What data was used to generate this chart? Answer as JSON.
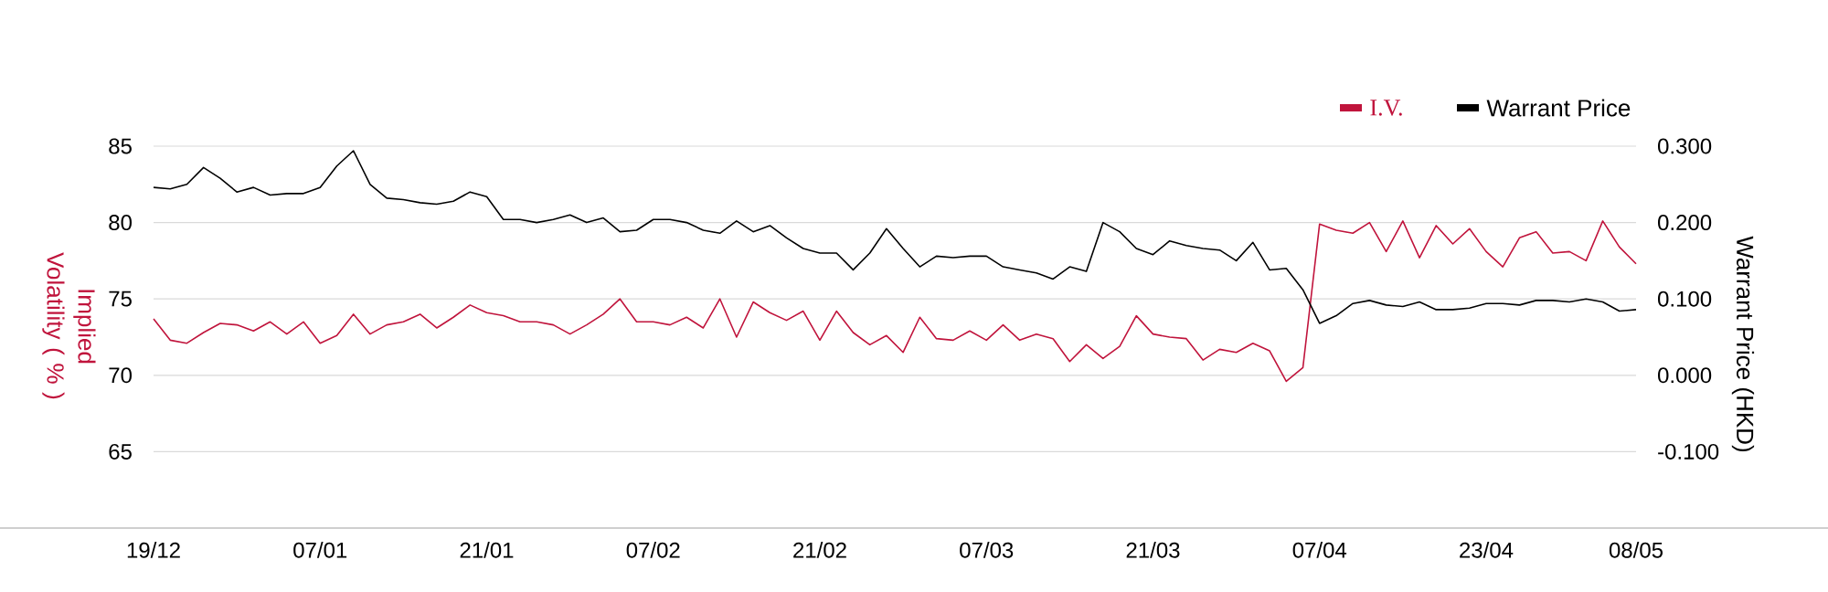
{
  "chart_data": {
    "type": "line",
    "categories": [
      "19/12",
      null,
      null,
      null,
      null,
      null,
      null,
      null,
      null,
      null,
      "07/01",
      null,
      null,
      null,
      null,
      null,
      null,
      null,
      null,
      null,
      "21/01",
      null,
      null,
      null,
      null,
      null,
      null,
      null,
      null,
      null,
      "07/02",
      null,
      null,
      null,
      null,
      null,
      null,
      null,
      null,
      null,
      "21/02",
      null,
      null,
      null,
      null,
      null,
      null,
      null,
      null,
      null,
      "07/03",
      null,
      null,
      null,
      null,
      null,
      null,
      null,
      null,
      null,
      "21/03",
      null,
      null,
      null,
      null,
      null,
      null,
      null,
      null,
      null,
      "07/04",
      null,
      null,
      null,
      null,
      null,
      null,
      null,
      null,
      null,
      "23/04",
      null,
      null,
      null,
      null,
      null,
      null,
      null,
      null,
      "08/05"
    ],
    "series": [
      {
        "name": "I.V.",
        "color": "#c0143c",
        "values": [
          73.7,
          72.3,
          72.1,
          72.8,
          73.4,
          73.3,
          72.9,
          73.5,
          72.7,
          73.5,
          72.1,
          72.6,
          74.0,
          72.7,
          73.3,
          73.5,
          74.0,
          73.1,
          73.8,
          74.6,
          74.1,
          73.9,
          73.5,
          73.5,
          73.3,
          72.7,
          73.3,
          74.0,
          75.0,
          73.5,
          73.5,
          73.3,
          73.8,
          73.1,
          75.0,
          72.5,
          74.8,
          74.1,
          73.6,
          74.2,
          72.3,
          74.2,
          72.8,
          72.0,
          72.6,
          71.5,
          73.8,
          72.4,
          72.3,
          72.9,
          72.3,
          73.3,
          72.3,
          72.7,
          72.4,
          70.9,
          72.0,
          71.1,
          71.9,
          73.9,
          72.7,
          72.5,
          72.4,
          71.0,
          71.7,
          71.5,
          72.1,
          71.6,
          69.6,
          70.5,
          79.9,
          79.5,
          79.3,
          80.0,
          78.1,
          80.1,
          77.7,
          79.8,
          78.6,
          79.6,
          78.1,
          77.1,
          79.0,
          79.4,
          78.0,
          78.1,
          77.5,
          80.1,
          78.4,
          77.3
        ]
      },
      {
        "name": "Warrant Price",
        "color": "#000000",
        "axis": "y2",
        "values": [
          0.246,
          0.244,
          0.25,
          0.272,
          0.258,
          0.24,
          0.246,
          0.236,
          0.238,
          0.238,
          0.246,
          0.274,
          0.294,
          0.25,
          0.232,
          0.23,
          0.226,
          0.224,
          0.228,
          0.24,
          0.234,
          0.204,
          0.204,
          0.2,
          0.204,
          0.21,
          0.2,
          0.206,
          0.188,
          0.19,
          0.204,
          0.204,
          0.2,
          0.19,
          0.186,
          0.202,
          0.188,
          0.196,
          0.18,
          0.166,
          0.16,
          0.16,
          0.138,
          0.16,
          0.192,
          0.166,
          0.142,
          0.156,
          0.154,
          0.156,
          0.156,
          0.142,
          0.138,
          0.134,
          0.126,
          0.142,
          0.136,
          0.2,
          0.188,
          0.166,
          0.158,
          0.176,
          0.17,
          0.166,
          0.164,
          0.15,
          0.174,
          0.138,
          0.14,
          0.112,
          0.068,
          0.078,
          0.094,
          0.098,
          0.092,
          0.09,
          0.096,
          0.086,
          0.086,
          0.088,
          0.094,
          0.094,
          0.092,
          0.098,
          0.098,
          0.096,
          0.1,
          0.096,
          0.084,
          0.086
        ]
      }
    ],
    "ylabel": "Implied Volatility ( % )",
    "y2label": "Warrant Price (HKD)",
    "ylim": [
      60,
      85
    ],
    "yticks": [
      65,
      70,
      75,
      80,
      85
    ],
    "y2lim": [
      -0.2,
      0.3
    ],
    "y2ticks": [
      {
        "value": -0.1,
        "label": "-0.100"
      },
      {
        "value": 0.0,
        "label": "0.000"
      },
      {
        "value": 0.1,
        "label": "0.100"
      },
      {
        "value": 0.2,
        "label": "0.200"
      },
      {
        "value": 0.3,
        "label": "0.300"
      }
    ],
    "grid": "y",
    "legend": "top right",
    "marker": "none",
    "line_style": "solid"
  }
}
